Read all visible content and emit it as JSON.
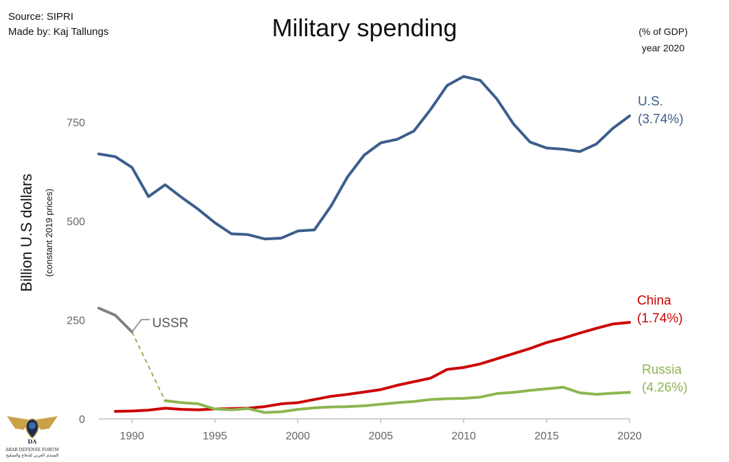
{
  "header": {
    "source": "Source: SIPRI",
    "author": "Made by: Kaj Tallungs",
    "note_line1": "(% of GDP)",
    "note_line2": "year 2020"
  },
  "logo": {
    "name": "ARAB DEFENSE FORUM",
    "arabic": "المنتدى العربي للدفاع والتسليح",
    "monogram": "DA"
  },
  "chart_data": {
    "type": "line",
    "title": "Military spending",
    "ylabel": "Billion U.S dollars",
    "ylabel_sub": "(constant 2019 prices)",
    "xlabel": "",
    "xlim": [
      1988,
      2020
    ],
    "ylim": [
      0,
      900
    ],
    "x_ticks": [
      1990,
      1995,
      2000,
      2005,
      2010,
      2015,
      2020
    ],
    "y_ticks": [
      0,
      250,
      500,
      750
    ],
    "grid": false,
    "series": [
      {
        "name": "U.S.",
        "label_line1": "U.S.",
        "label_line2": "(3.74%)",
        "color": "#3b5e8c",
        "x": [
          1988,
          1989,
          1990,
          1991,
          1992,
          1993,
          1994,
          1995,
          1996,
          1997,
          1998,
          1999,
          2000,
          2001,
          2002,
          2003,
          2004,
          2005,
          2006,
          2007,
          2008,
          2009,
          2010,
          2011,
          2012,
          2013,
          2014,
          2015,
          2016,
          2017,
          2018,
          2019,
          2020
        ],
        "values": [
          670,
          663,
          636,
          562,
          592,
          560,
          530,
          496,
          468,
          466,
          455,
          457,
          475,
          478,
          538,
          612,
          667,
          698,
          707,
          728,
          782,
          843,
          866,
          856,
          809,
          746,
          700,
          685,
          682,
          676,
          695,
          735,
          766
        ]
      },
      {
        "name": "China",
        "label_line1": "China",
        "label_line2": "(1.74%)",
        "color": "#cc0000",
        "x": [
          1989,
          1990,
          1991,
          1992,
          1993,
          1994,
          1995,
          1996,
          1997,
          1998,
          1999,
          2000,
          2001,
          2002,
          2003,
          2004,
          2005,
          2006,
          2007,
          2008,
          2009,
          2010,
          2011,
          2012,
          2013,
          2014,
          2015,
          2016,
          2017,
          2018,
          2019,
          2020
        ],
        "values": [
          19,
          20,
          22,
          27,
          24,
          23,
          25,
          26,
          27,
          31,
          38,
          41,
          49,
          57,
          62,
          68,
          74,
          85,
          94,
          103,
          125,
          130,
          139,
          152,
          165,
          178,
          193,
          204,
          217,
          229,
          240,
          244
        ]
      },
      {
        "name": "Russia",
        "label_line1": "Russia",
        "label_line2": "(4.26%)",
        "color": "#8db550",
        "x": [
          1992,
          1993,
          1994,
          1995,
          1996,
          1997,
          1998,
          1999,
          2000,
          2001,
          2002,
          2003,
          2004,
          2005,
          2006,
          2007,
          2008,
          2009,
          2010,
          2011,
          2012,
          2013,
          2014,
          2015,
          2016,
          2017,
          2018,
          2019,
          2020
        ],
        "values": [
          46,
          41,
          38,
          25,
          23,
          26,
          16,
          18,
          24,
          28,
          30,
          31,
          33,
          37,
          41,
          44,
          49,
          51,
          52,
          55,
          64,
          67,
          72,
          76,
          80,
          66,
          62,
          65,
          67
        ]
      },
      {
        "name": "USSR",
        "label_line1": "USSR",
        "label_line2": "",
        "color": "#808080",
        "x": [
          1988,
          1989,
          1990
        ],
        "values": [
          280,
          262,
          220
        ]
      }
    ],
    "connector": {
      "from_series": "USSR",
      "to_series": "Russia",
      "style": "dashed",
      "color": "#8db550",
      "x": [
        1990,
        1992
      ],
      "values": [
        220,
        46
      ]
    }
  }
}
